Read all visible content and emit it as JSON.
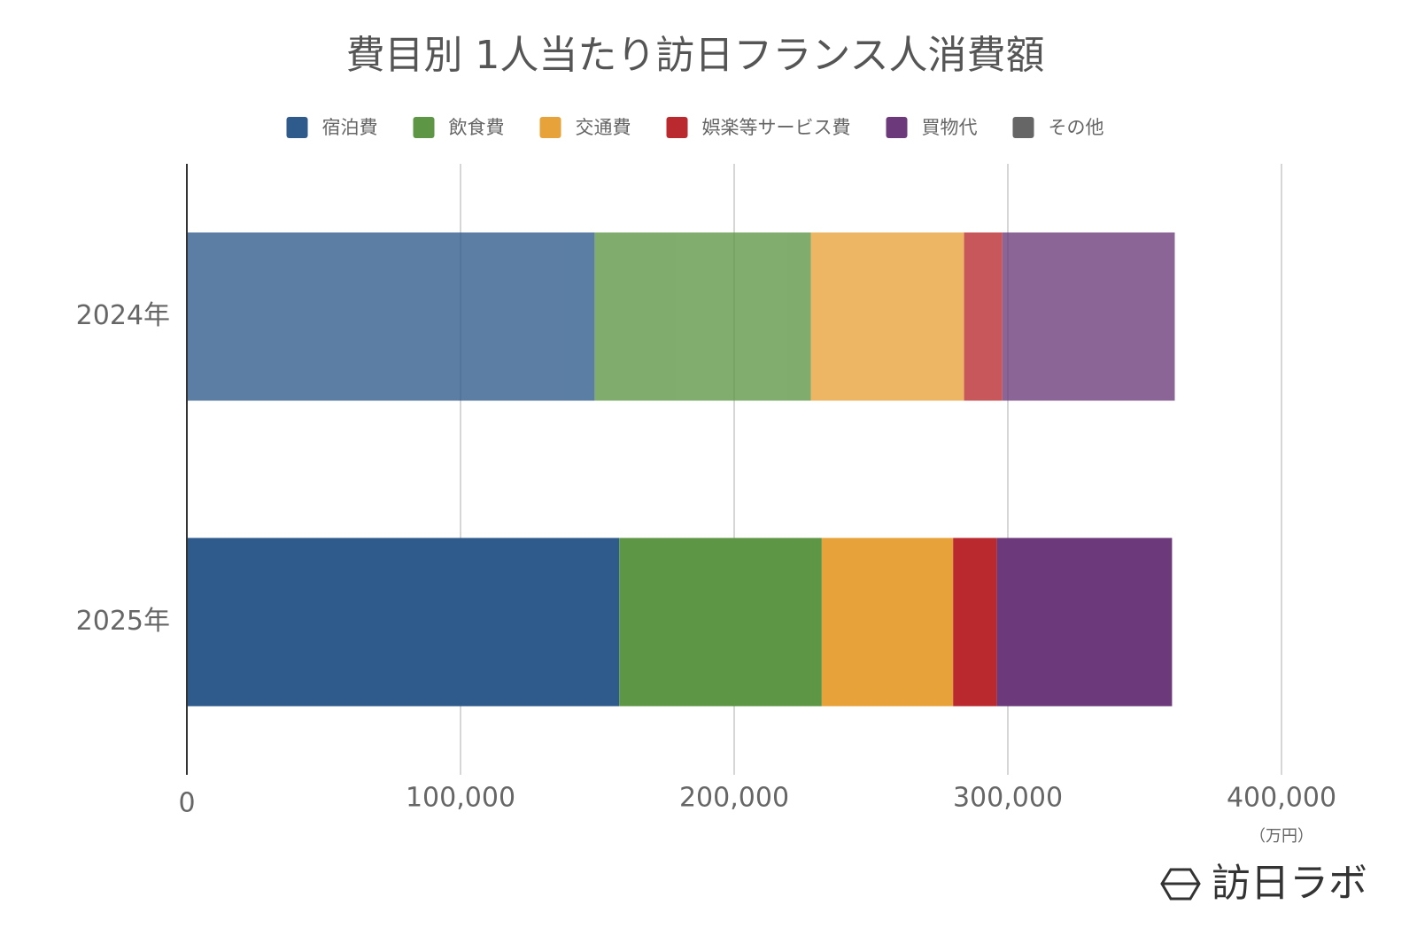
{
  "chart_data": {
    "type": "stacked-barh",
    "title": "費目別 1人当たり訪日フランス人消費額",
    "categories": [
      "2024年",
      "2025年"
    ],
    "series": [
      {
        "name": "宿泊費",
        "color": "#2e5a8c",
        "values": [
          149000,
          158000
        ]
      },
      {
        "name": "飲食費",
        "color": "#5d9645",
        "values": [
          79000,
          74000
        ]
      },
      {
        "name": "交通費",
        "color": "#e8a23a",
        "values": [
          56000,
          48000
        ]
      },
      {
        "name": "娯楽等サービス費",
        "color": "#b9292e",
        "values": [
          14000,
          16000
        ]
      },
      {
        "name": "買物代",
        "color": "#6c3a7a",
        "values": [
          63000,
          64000
        ]
      },
      {
        "name": "その他",
        "color": "#666666",
        "values": [
          0,
          0
        ]
      }
    ],
    "xlim": [
      0,
      400000
    ],
    "xticks": [
      0,
      {
        "value": 100000,
        "label": "100,000"
      },
      {
        "value": 200000,
        "label": "200,000"
      },
      {
        "value": 300000,
        "label": "300,000"
      },
      {
        "value": 400000,
        "label": "400,000"
      }
    ],
    "x_unit": "（万円）",
    "grid": true,
    "legend": "top"
  },
  "logo": "訪日ラボ"
}
